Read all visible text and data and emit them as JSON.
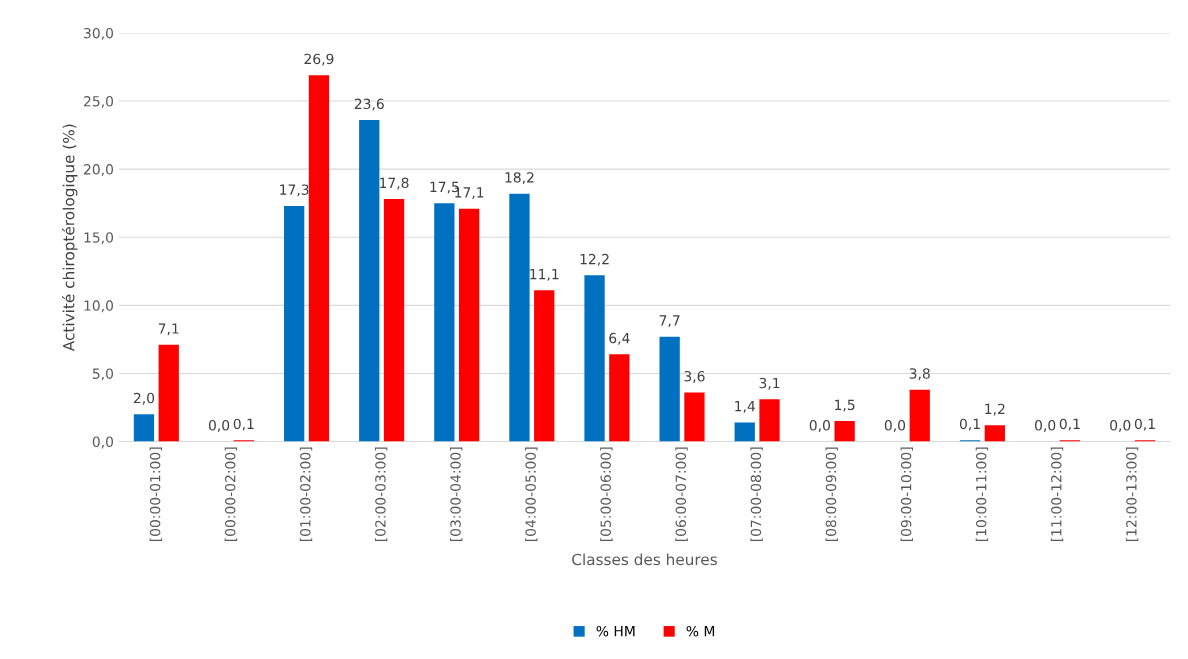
{
  "chart_data": {
    "type": "bar",
    "xlabel": "Classes des heures",
    "ylabel": "Activité chiroptérologique (%)",
    "categories": [
      "[00:00-01:00]",
      "[00:00-02:00]",
      "[01:00-02:00]",
      "[02:00-03:00]",
      "[03:00-04:00]",
      "[04:00-05:00]",
      "[05:00-06:00]",
      "[06:00-07:00]",
      "[07:00-08:00]",
      "[08:00-09:00]",
      "[09:00-10:00]",
      "[10:00-11:00]",
      "[11:00-12:00]",
      "[12:00-13:00]"
    ],
    "series": [
      {
        "name": "% HM",
        "color": "#0070c0",
        "values": [
          2.0,
          0.0,
          17.3,
          23.6,
          17.5,
          18.2,
          12.2,
          7.7,
          1.4,
          0.0,
          0.0,
          0.1,
          0.0,
          0.0
        ],
        "value_labels": [
          "2,0",
          "0,0",
          "17,3",
          "23,6",
          "17,5",
          "18,2",
          "12,2",
          "7,7",
          "1,4",
          "0,0",
          "0,0",
          "0,1",
          "0,0",
          "0,0"
        ]
      },
      {
        "name": "% M",
        "color": "#ff0000",
        "values": [
          7.1,
          0.1,
          26.9,
          17.8,
          17.1,
          11.1,
          6.4,
          3.6,
          3.1,
          1.5,
          3.8,
          1.2,
          0.1,
          0.1
        ],
        "value_labels": [
          "7,1",
          "0,1",
          "26,9",
          "17,8",
          "17,1",
          "11,1",
          "6,4",
          "3,6",
          "3,1",
          "1,5",
          "3,8",
          "1,2",
          "0,1",
          "0,1"
        ]
      }
    ],
    "ylim": [
      0,
      30
    ],
    "yticks": [
      {
        "value": 0,
        "label": "0,0"
      },
      {
        "value": 5,
        "label": "5,0"
      },
      {
        "value": 10,
        "label": "10,0"
      },
      {
        "value": 15,
        "label": "15,0"
      },
      {
        "value": 20,
        "label": "20,0"
      },
      {
        "value": 25,
        "label": "25,0"
      },
      {
        "value": 30,
        "label": "30,0"
      }
    ],
    "grid": "y",
    "legend": "bottom"
  }
}
